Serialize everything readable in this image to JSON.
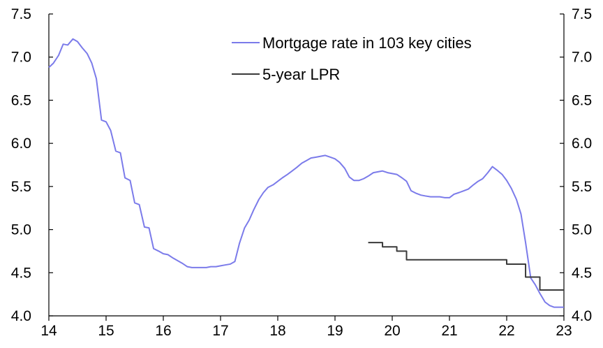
{
  "chart_data": {
    "type": "line",
    "title": "",
    "xlabel": "",
    "ylabel": "",
    "xlim": [
      2014,
      2023
    ],
    "ylim": [
      4.0,
      7.5
    ],
    "y_ticks": [
      4.0,
      4.5,
      5.0,
      5.5,
      6.0,
      6.5,
      7.0,
      7.5
    ],
    "y_tick_labels": [
      "4.0",
      "4.5",
      "5.0",
      "5.5",
      "6.0",
      "6.5",
      "7.0",
      "7.5"
    ],
    "x_ticks": [
      2014,
      2015,
      2016,
      2017,
      2018,
      2019,
      2020,
      2021,
      2022,
      2023
    ],
    "x_tick_labels": [
      "14",
      "15",
      "16",
      "17",
      "18",
      "19",
      "20",
      "21",
      "22",
      "23"
    ],
    "dual_y_axis": true,
    "grid": false,
    "legend_position": "top-center",
    "series": [
      {
        "name": "Mortgage rate in 103 key cities",
        "color": "#7b7bea",
        "x": [
          2014.0,
          2014.08,
          2014.17,
          2014.25,
          2014.33,
          2014.42,
          2014.5,
          2014.58,
          2014.67,
          2014.75,
          2014.83,
          2014.92,
          2015.0,
          2015.08,
          2015.17,
          2015.25,
          2015.33,
          2015.42,
          2015.5,
          2015.58,
          2015.67,
          2015.75,
          2015.83,
          2015.92,
          2016.0,
          2016.08,
          2016.17,
          2016.25,
          2016.33,
          2016.42,
          2016.5,
          2016.58,
          2016.67,
          2016.75,
          2016.83,
          2016.92,
          2017.0,
          2017.08,
          2017.17,
          2017.25,
          2017.33,
          2017.42,
          2017.5,
          2017.58,
          2017.67,
          2017.75,
          2017.83,
          2017.92,
          2018.0,
          2018.08,
          2018.17,
          2018.25,
          2018.33,
          2018.42,
          2018.5,
          2018.58,
          2018.67,
          2018.75,
          2018.83,
          2018.92,
          2019.0,
          2019.08,
          2019.17,
          2019.25,
          2019.33,
          2019.42,
          2019.5,
          2019.58,
          2019.67,
          2019.75,
          2019.83,
          2019.92,
          2020.0,
          2020.08,
          2020.17,
          2020.25,
          2020.33,
          2020.42,
          2020.5,
          2020.58,
          2020.67,
          2020.75,
          2020.83,
          2020.92,
          2021.0,
          2021.08,
          2021.17,
          2021.25,
          2021.33,
          2021.42,
          2021.5,
          2021.58,
          2021.67,
          2021.75,
          2021.83,
          2021.92,
          2022.0,
          2022.08,
          2022.17,
          2022.25,
          2022.33,
          2022.42,
          2022.5,
          2022.58,
          2022.67,
          2022.75,
          2022.83,
          2022.92,
          2023.0
        ],
        "values": [
          6.88,
          6.93,
          7.02,
          7.15,
          7.14,
          7.21,
          7.18,
          7.11,
          7.04,
          6.93,
          6.75,
          6.27,
          6.25,
          6.15,
          5.91,
          5.89,
          5.6,
          5.57,
          5.31,
          5.29,
          5.03,
          5.02,
          4.78,
          4.75,
          4.72,
          4.71,
          4.67,
          4.64,
          4.61,
          4.57,
          4.56,
          4.56,
          4.56,
          4.56,
          4.57,
          4.57,
          4.58,
          4.59,
          4.6,
          4.63,
          4.84,
          5.02,
          5.11,
          5.23,
          5.35,
          5.43,
          5.49,
          5.52,
          5.56,
          5.6,
          5.64,
          5.68,
          5.72,
          5.77,
          5.8,
          5.83,
          5.84,
          5.85,
          5.86,
          5.84,
          5.82,
          5.78,
          5.71,
          5.61,
          5.57,
          5.57,
          5.59,
          5.62,
          5.66,
          5.67,
          5.68,
          5.66,
          5.65,
          5.64,
          5.6,
          5.56,
          5.45,
          5.42,
          5.4,
          5.39,
          5.38,
          5.38,
          5.38,
          5.37,
          5.37,
          5.41,
          5.43,
          5.45,
          5.47,
          5.52,
          5.56,
          5.59,
          5.66,
          5.73,
          5.69,
          5.64,
          5.57,
          5.48,
          5.35,
          5.18,
          4.85,
          4.44,
          4.36,
          4.26,
          4.16,
          4.12,
          4.1,
          4.1,
          4.1
        ]
      },
      {
        "name": "5-year LPR",
        "color": "#3a3a3a",
        "x": [
          2019.58,
          2019.67,
          2019.75,
          2019.83,
          2019.92,
          2020.0,
          2020.08,
          2020.17,
          2020.25,
          2020.33,
          2020.42,
          2020.5,
          2020.58,
          2020.67,
          2020.75,
          2020.83,
          2020.92,
          2021.0,
          2021.08,
          2021.17,
          2021.25,
          2021.33,
          2021.42,
          2021.5,
          2021.58,
          2021.67,
          2021.75,
          2021.83,
          2021.92,
          2022.0,
          2022.08,
          2022.17,
          2022.25,
          2022.33,
          2022.42,
          2022.5,
          2022.58,
          2022.67,
          2022.75,
          2022.83,
          2022.92,
          2023.0
        ],
        "values": [
          4.85,
          4.85,
          4.85,
          4.8,
          4.8,
          4.8,
          4.75,
          4.75,
          4.65,
          4.65,
          4.65,
          4.65,
          4.65,
          4.65,
          4.65,
          4.65,
          4.65,
          4.65,
          4.65,
          4.65,
          4.65,
          4.65,
          4.65,
          4.65,
          4.65,
          4.65,
          4.65,
          4.65,
          4.65,
          4.6,
          4.6,
          4.6,
          4.6,
          4.45,
          4.45,
          4.45,
          4.3,
          4.3,
          4.3,
          4.3,
          4.3,
          4.3
        ],
        "step": true
      }
    ]
  }
}
